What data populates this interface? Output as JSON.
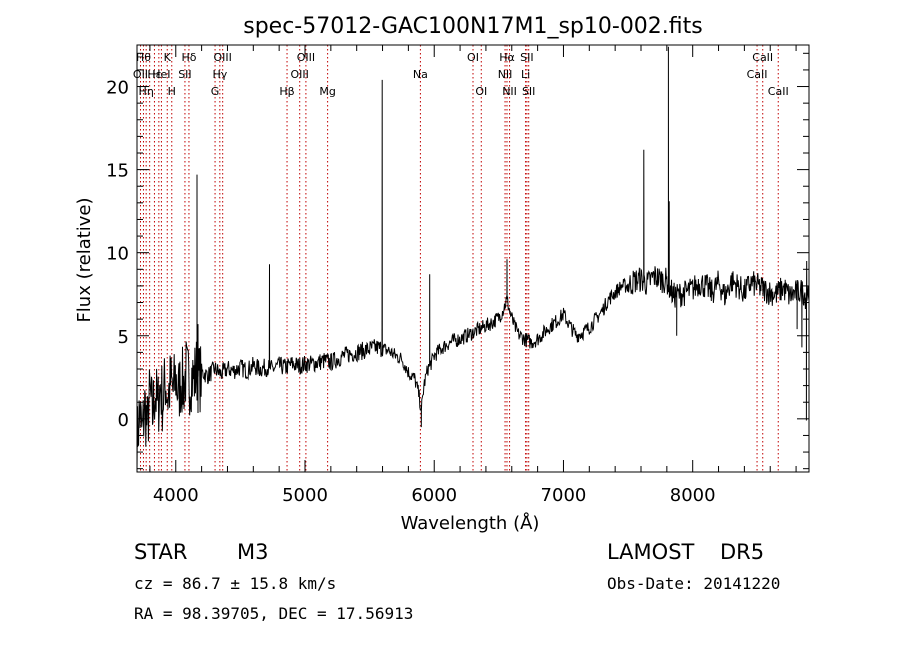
{
  "chart_data": {
    "type": "line",
    "title": "spec-57012-GAC100N17M1_sp10-002.fits",
    "xlabel": "Wavelength (Å)",
    "ylabel": "Flux (relative)",
    "xlim": [
      3700,
      8900
    ],
    "ylim": [
      -3.2,
      22.5
    ],
    "xticks": [
      {
        "value": 4000,
        "label": "4000"
      },
      {
        "value": 5000,
        "label": "5000"
      },
      {
        "value": 6000,
        "label": "6000"
      },
      {
        "value": 7000,
        "label": "7000"
      },
      {
        "value": 8000,
        "label": "8000"
      }
    ],
    "yticks": [
      {
        "value": 0,
        "label": "0"
      },
      {
        "value": 5,
        "label": "5"
      },
      {
        "value": 10,
        "label": "10"
      },
      {
        "value": 15,
        "label": "15"
      },
      {
        "value": 20,
        "label": "20"
      }
    ],
    "grid": false,
    "line_color": "#000000",
    "marker_color": "#c00000",
    "spectrum_x": [
      3700,
      3720,
      3740,
      3760,
      3780,
      3800,
      3820,
      3840,
      3860,
      3880,
      3900,
      3920,
      3940,
      3960,
      3980,
      4000,
      4020,
      4040,
      4060,
      4080,
      4100,
      4120,
      4140,
      4160,
      4180,
      4200,
      4250,
      4300,
      4350,
      4400,
      4450,
      4500,
      4550,
      4600,
      4650,
      4700,
      4750,
      4800,
      4850,
      4900,
      4950,
      5000,
      5050,
      5100,
      5150,
      5200,
      5250,
      5300,
      5350,
      5400,
      5450,
      5500,
      5550,
      5600,
      5650,
      5700,
      5750,
      5800,
      5850,
      5880,
      5900,
      5920,
      5950,
      5980,
      6000,
      6050,
      6100,
      6150,
      6200,
      6250,
      6300,
      6350,
      6400,
      6450,
      6500,
      6530,
      6563,
      6590,
      6620,
      6650,
      6700,
      6750,
      6800,
      6850,
      6900,
      6950,
      7000,
      7050,
      7100,
      7150,
      7200,
      7250,
      7300,
      7350,
      7400,
      7450,
      7500,
      7550,
      7600,
      7650,
      7700,
      7750,
      7800,
      7850,
      7900,
      7950,
      8000,
      8050,
      8100,
      8150,
      8200,
      8250,
      8300,
      8350,
      8400,
      8450,
      8500,
      8550,
      8600,
      8650,
      8700,
      8750,
      8800,
      8850,
      8880,
      8900
    ],
    "spectrum_y": [
      -1.5,
      0.5,
      -1.0,
      0.8,
      -0.5,
      1.5,
      0.2,
      1.8,
      0.6,
      2.0,
      1.0,
      2.3,
      1.3,
      2.2,
      1.6,
      2.5,
      1.5,
      2.4,
      2.0,
      2.8,
      2.2,
      2.6,
      2.4,
      2.9,
      2.3,
      2.8,
      2.6,
      3.0,
      2.7,
      3.0,
      2.9,
      3.1,
      2.9,
      3.2,
      3.0,
      3.1,
      3.0,
      3.2,
      3.1,
      3.3,
      3.2,
      3.3,
      3.3,
      3.4,
      3.5,
      3.4,
      3.6,
      3.8,
      3.9,
      4.0,
      4.1,
      4.2,
      4.3,
      4.2,
      4.1,
      3.8,
      3.6,
      2.8,
      2.4,
      1.5,
      0.5,
      2.0,
      3.0,
      3.4,
      3.8,
      4.2,
      4.5,
      4.7,
      4.8,
      5.0,
      5.2,
      5.4,
      5.6,
      5.8,
      6.1,
      6.5,
      7.2,
      6.3,
      5.6,
      5.1,
      4.8,
      4.6,
      4.8,
      5.2,
      5.6,
      5.9,
      6.3,
      5.6,
      5.0,
      5.2,
      5.5,
      6.0,
      6.5,
      7.2,
      7.6,
      8.0,
      8.0,
      8.3,
      8.4,
      8.1,
      8.6,
      8.4,
      8.3,
      7.4,
      7.5,
      7.6,
      7.8,
      8.2,
      8.0,
      7.6,
      8.2,
      7.4,
      8.3,
      8.0,
      7.6,
      8.2,
      8.0,
      7.8,
      7.6,
      7.5,
      7.9,
      7.4,
      7.6,
      7.7,
      7.3,
      7.9
    ],
    "spikes": [
      {
        "x": 4164,
        "y": 14.7
      },
      {
        "x": 4172,
        "y": 5.7
      },
      {
        "x": 4725,
        "y": 9.3
      },
      {
        "x": 5597,
        "y": 20.4
      },
      {
        "x": 5965,
        "y": 8.7
      },
      {
        "x": 6563,
        "y": 9.6
      },
      {
        "x": 7622,
        "y": 16.2
      },
      {
        "x": 7812,
        "y": 22.4
      },
      {
        "x": 7818,
        "y": 13.1
      },
      {
        "x": 8882,
        "y": 9.5
      }
    ],
    "dips": [
      {
        "x": 5900,
        "y": -0.5
      },
      {
        "x": 7876,
        "y": 5.0
      },
      {
        "x": 8808,
        "y": 5.4
      },
      {
        "x": 8845,
        "y": 4.3
      },
      {
        "x": 8880,
        "y": -0.1
      }
    ],
    "line_markers": [
      {
        "x": 3727,
        "label": "OII",
        "row": 2
      },
      {
        "x": 3750,
        "label": "Hθ",
        "row": 1
      },
      {
        "x": 3771,
        "label": "Hη",
        "row": 3
      },
      {
        "x": 3798,
        "label": "",
        "row": 0
      },
      {
        "x": 3835,
        "label": "Hε",
        "row": 2
      },
      {
        "x": 3869,
        "label": "",
        "row": 0
      },
      {
        "x": 3889,
        "label": "HeI",
        "row": 2
      },
      {
        "x": 3934,
        "label": "K",
        "row": 1
      },
      {
        "x": 3969,
        "label": "H",
        "row": 3
      },
      {
        "x": 4071,
        "label": "SII",
        "row": 2
      },
      {
        "x": 4102,
        "label": "Hδ",
        "row": 1
      },
      {
        "x": 4304,
        "label": "G",
        "row": 3
      },
      {
        "x": 4341,
        "label": "Hγ",
        "row": 2
      },
      {
        "x": 4363,
        "label": "OIII",
        "row": 1
      },
      {
        "x": 4861,
        "label": "Hβ",
        "row": 3
      },
      {
        "x": 4959,
        "label": "OIII",
        "row": 2
      },
      {
        "x": 5007,
        "label": "OIII",
        "row": 1
      },
      {
        "x": 5175,
        "label": "Mg",
        "row": 3
      },
      {
        "x": 5893,
        "label": "Na",
        "row": 2
      },
      {
        "x": 6300,
        "label": "OI",
        "row": 1
      },
      {
        "x": 6364,
        "label": "OI",
        "row": 3
      },
      {
        "x": 6548,
        "label": "NII",
        "row": 2
      },
      {
        "x": 6563,
        "label": "Hα",
        "row": 1
      },
      {
        "x": 6583,
        "label": "NII",
        "row": 3
      },
      {
        "x": 6707,
        "label": "Li",
        "row": 2
      },
      {
        "x": 6717,
        "label": "SII",
        "row": 1
      },
      {
        "x": 6731,
        "label": "SII",
        "row": 3
      },
      {
        "x": 8498,
        "label": "CaII",
        "row": 2
      },
      {
        "x": 8542,
        "label": "CaII",
        "row": 1
      },
      {
        "x": 8662,
        "label": "CaII",
        "row": 3
      }
    ]
  },
  "info": {
    "class": "STAR",
    "subclass": "M3",
    "survey": "LAMOST",
    "release": "DR5",
    "redshift_line": "cz = 86.7 ± 15.8 km/s",
    "obs_date": "Obs-Date: 20141220",
    "coords": "RA =  98.39705, DEC =  17.56913"
  }
}
